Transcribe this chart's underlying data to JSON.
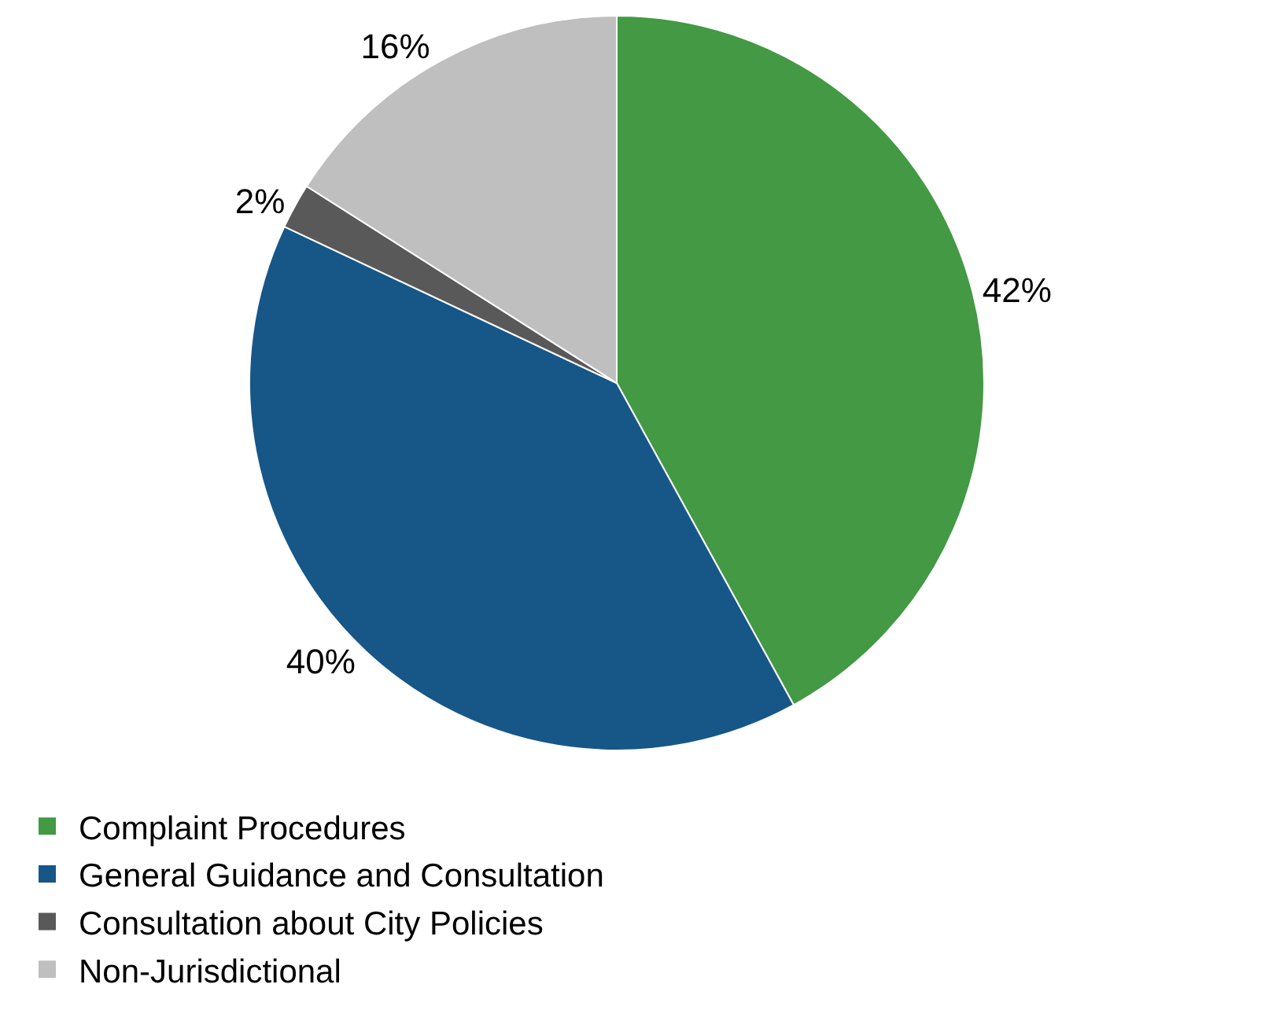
{
  "chart_data": {
    "type": "pie",
    "categories": [
      "Complaint Procedures",
      "General Guidance and Consultation",
      "Consultation about City Policies",
      "Non-Jurisdictional"
    ],
    "values": [
      42,
      40,
      2,
      16
    ],
    "colors": [
      "#439944",
      "#175788",
      "#595959",
      "#bfbfbf"
    ],
    "value_labels": [
      "42%",
      "40%",
      "2%",
      "16%"
    ],
    "legend": "bottom"
  }
}
